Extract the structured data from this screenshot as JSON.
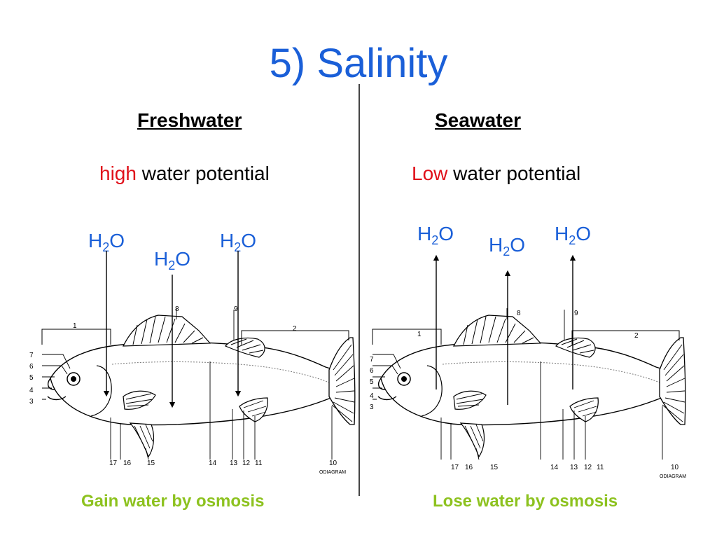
{
  "title": "5) Salinity",
  "colors": {
    "title": "#1a5fd8",
    "h2o": "#1a5fd8",
    "highlight": "#e0101a",
    "caption": "#8dc21f"
  },
  "freshwater": {
    "heading": "Freshwater",
    "potential_highlight": "high",
    "potential_rest": " water potential",
    "h2o_labels": [
      {
        "main": "H",
        "sub": "2",
        "tail": "O"
      },
      {
        "main": "H",
        "sub": "2",
        "tail": "O"
      },
      {
        "main": "H",
        "sub": "2",
        "tail": "O"
      }
    ],
    "caption": "Gain water by osmosis",
    "arrow_direction": "into fish"
  },
  "seawater": {
    "heading": "Seawater",
    "potential_highlight": "Low",
    "potential_rest": " water potential",
    "h2o_labels": [
      {
        "main": "H",
        "sub": "2",
        "tail": "O"
      },
      {
        "main": "H",
        "sub": "2",
        "tail": "O"
      },
      {
        "main": "H",
        "sub": "2",
        "tail": "O"
      }
    ],
    "caption": "Lose water by osmosis",
    "arrow_direction": "out of fish"
  },
  "fish_labels": {
    "numbers": [
      "1",
      "2",
      "3",
      "4",
      "5",
      "6",
      "7",
      "8",
      "9",
      "10",
      "11",
      "12",
      "13",
      "14",
      "15",
      "16",
      "17"
    ],
    "stamp": "ODIAGRAM"
  }
}
